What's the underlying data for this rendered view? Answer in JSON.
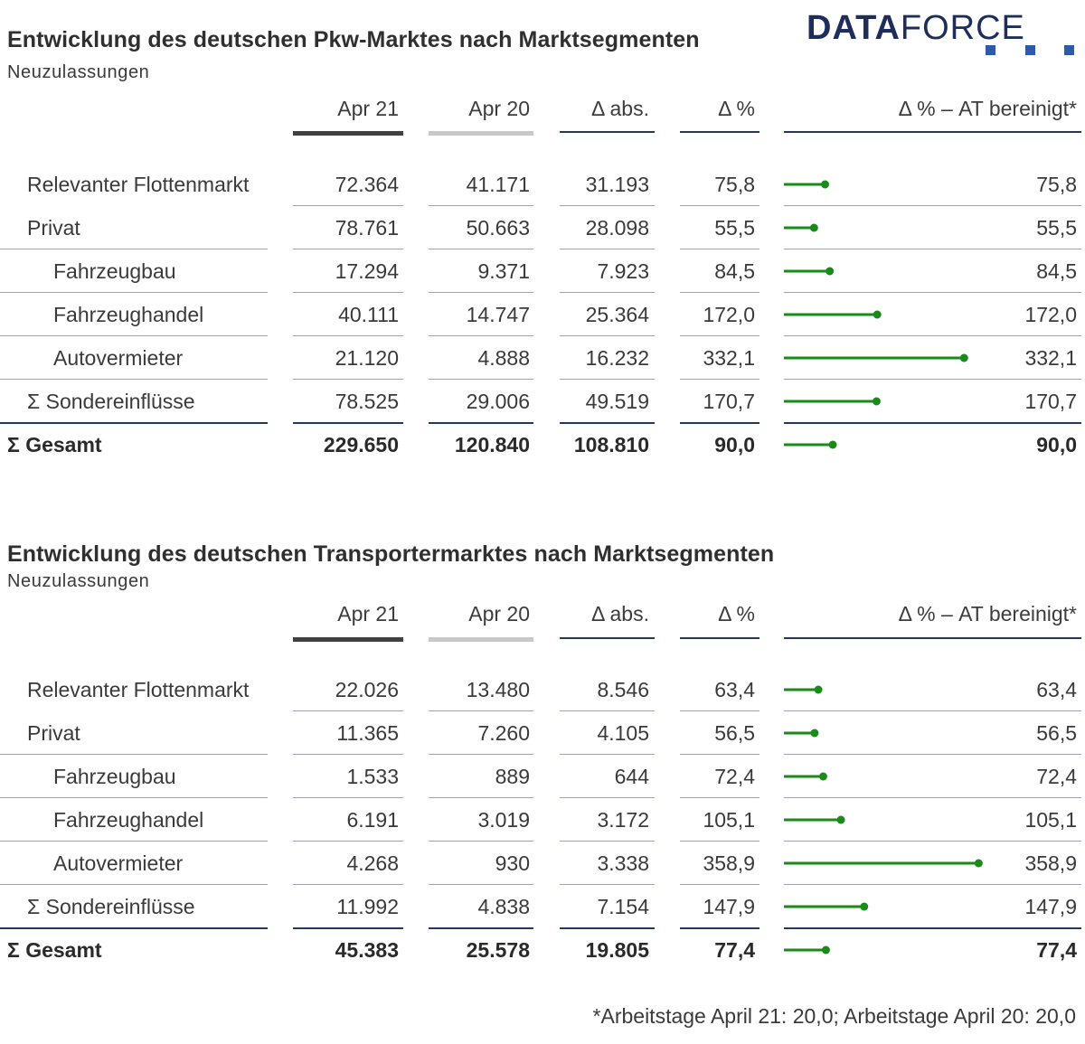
{
  "logo": {
    "text_bold": "DATA",
    "text_regular": "FORCE"
  },
  "footnote": "*Arbeitstage April 21: 20,0; Arbeitstage April 20: 20,0",
  "accent_color": "#1a8a1a",
  "chart_data": [
    {
      "type": "table",
      "title": "Entwicklung des deutschen Pkw-Marktes nach Marktsegmenten",
      "subtitle": "Neuzulassungen",
      "columns": [
        "Apr 21",
        "Apr 20",
        "Δ abs.",
        "Δ %",
        "Δ % – AT bereinigt*"
      ],
      "rows": [
        {
          "label": "Relevanter Flottenmarkt",
          "indent": 1,
          "apr21": "72.364",
          "apr20": "41.171",
          "abs": "31.193",
          "pct": "75,8",
          "adj": "75,8",
          "adj_value": 75.8
        },
        {
          "label": "Privat",
          "indent": 1,
          "apr21": "78.761",
          "apr20": "50.663",
          "abs": "28.098",
          "pct": "55,5",
          "adj": "55,5",
          "adj_value": 55.5
        },
        {
          "label": "Fahrzeugbau",
          "indent": 2,
          "apr21": "17.294",
          "apr20": "9.371",
          "abs": "7.923",
          "pct": "84,5",
          "adj": "84,5",
          "adj_value": 84.5
        },
        {
          "label": "Fahrzeughandel",
          "indent": 2,
          "apr21": "40.111",
          "apr20": "14.747",
          "abs": "25.364",
          "pct": "172,0",
          "adj": "172,0",
          "adj_value": 172.0
        },
        {
          "label": "Autovermieter",
          "indent": 2,
          "apr21": "21.120",
          "apr20": "4.888",
          "abs": "16.232",
          "pct": "332,1",
          "adj": "332,1",
          "adj_value": 332.1
        },
        {
          "label": "Σ Sondereinflüsse",
          "indent": 1,
          "apr21": "78.525",
          "apr20": "29.006",
          "abs": "49.519",
          "pct": "170,7",
          "adj": "170,7",
          "adj_value": 170.7
        },
        {
          "label": "Σ Gesamt",
          "indent": 0,
          "total": true,
          "apr21": "229.650",
          "apr20": "120.840",
          "abs": "108.810",
          "pct": "90,0",
          "adj": "90,0",
          "adj_value": 90.0
        }
      ]
    },
    {
      "type": "table",
      "title": "Entwicklung des deutschen Transportermarktes nach Marktsegmenten",
      "subtitle": "Neuzulassungen",
      "columns": [
        "Apr 21",
        "Apr 20",
        "Δ abs.",
        "Δ %",
        "Δ % – AT bereinigt*"
      ],
      "rows": [
        {
          "label": "Relevanter Flottenmarkt",
          "indent": 1,
          "apr21": "22.026",
          "apr20": "13.480",
          "abs": "8.546",
          "pct": "63,4",
          "adj": "63,4",
          "adj_value": 63.4
        },
        {
          "label": "Privat",
          "indent": 1,
          "apr21": "11.365",
          "apr20": "7.260",
          "abs": "4.105",
          "pct": "56,5",
          "adj": "56,5",
          "adj_value": 56.5
        },
        {
          "label": "Fahrzeugbau",
          "indent": 2,
          "apr21": "1.533",
          "apr20": "889",
          "abs": "644",
          "pct": "72,4",
          "adj": "72,4",
          "adj_value": 72.4
        },
        {
          "label": "Fahrzeughandel",
          "indent": 2,
          "apr21": "6.191",
          "apr20": "3.019",
          "abs": "3.172",
          "pct": "105,1",
          "adj": "105,1",
          "adj_value": 105.1
        },
        {
          "label": "Autovermieter",
          "indent": 2,
          "apr21": "4.268",
          "apr20": "930",
          "abs": "3.338",
          "pct": "358,9",
          "adj": "358,9",
          "adj_value": 358.9
        },
        {
          "label": "Σ Sondereinflüsse",
          "indent": 1,
          "apr21": "11.992",
          "apr20": "4.838",
          "abs": "7.154",
          "pct": "147,9",
          "adj": "147,9",
          "adj_value": 147.9
        },
        {
          "label": "Σ Gesamt",
          "indent": 0,
          "total": true,
          "apr21": "45.383",
          "apr20": "25.578",
          "abs": "19.805",
          "pct": "77,4",
          "adj": "77,4",
          "adj_value": 77.4
        }
      ]
    }
  ]
}
